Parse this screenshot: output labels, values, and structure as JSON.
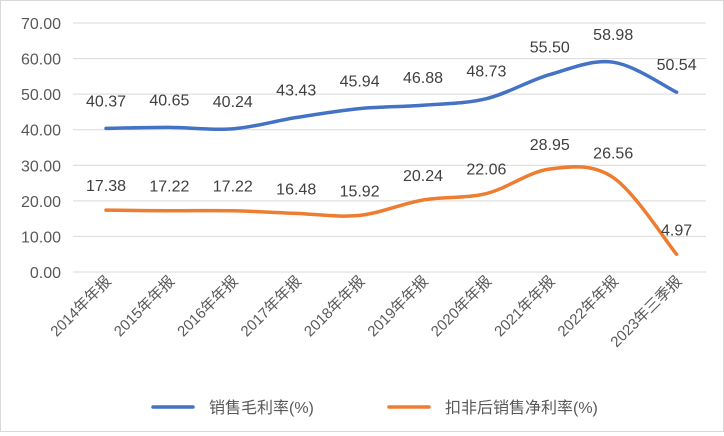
{
  "chart_data": {
    "type": "line",
    "categories": [
      "2014年年报",
      "2015年年报",
      "2016年年报",
      "2017年年报",
      "2018年年报",
      "2019年年报",
      "2020年年报",
      "2021年年报",
      "2022年年报",
      "2023年三季报"
    ],
    "series": [
      {
        "name": "销售毛利率(%)",
        "color": "#4472c4",
        "values": [
          40.37,
          40.65,
          40.24,
          43.43,
          45.94,
          46.88,
          48.73,
          55.5,
          58.98,
          50.54
        ],
        "labels": [
          "40.37",
          "40.65",
          "40.24",
          "43.43",
          "45.94",
          "46.88",
          "48.73",
          "55.50",
          "58.98",
          "50.54"
        ]
      },
      {
        "name": "扣非后销售净利率(%)",
        "color": "#ed7d31",
        "values": [
          17.38,
          17.22,
          17.22,
          16.48,
          15.92,
          20.24,
          22.06,
          28.95,
          26.56,
          4.97
        ],
        "labels": [
          "17.38",
          "17.22",
          "17.22",
          "16.48",
          "15.92",
          "20.24",
          "22.06",
          "28.95",
          "26.56",
          "4.97"
        ]
      }
    ],
    "yticks": [
      "0.00",
      "10.00",
      "20.00",
      "30.00",
      "40.00",
      "50.00",
      "60.00",
      "70.00"
    ],
    "ylim": [
      0,
      70
    ],
    "grid": true,
    "smooth": true,
    "legend_position": "bottom"
  }
}
